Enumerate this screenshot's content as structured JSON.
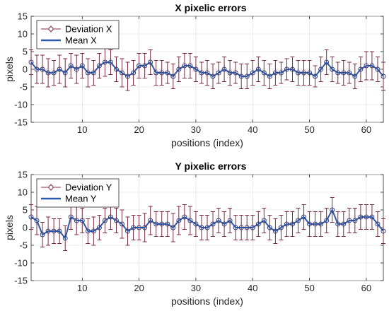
{
  "colors": {
    "errorbar": "#7a2b3f",
    "mean_line": "#2c5aa8",
    "marker_edge": "#3a3f7a",
    "grid": "#dcdcdc"
  },
  "chart_data": [
    {
      "type": "line",
      "title": "X pixelic errors",
      "xlabel": "positions (index)",
      "ylabel": "pixels",
      "xlim": [
        1,
        63
      ],
      "ylim": [
        -15,
        15
      ],
      "xticks": [
        10,
        20,
        30,
        40,
        50,
        60
      ],
      "yticks": [
        -15,
        -10,
        -5,
        0,
        5,
        10,
        15
      ],
      "grid": true,
      "legend": {
        "placement": "top-left",
        "entries": [
          "Deviation X",
          "Mean X"
        ]
      },
      "x": [
        1,
        2,
        3,
        4,
        5,
        6,
        7,
        8,
        9,
        10,
        11,
        12,
        13,
        14,
        15,
        16,
        17,
        18,
        19,
        20,
        21,
        22,
        23,
        24,
        25,
        26,
        27,
        28,
        29,
        30,
        31,
        32,
        33,
        34,
        35,
        36,
        37,
        38,
        39,
        40,
        41,
        42,
        43,
        44,
        45,
        46,
        47,
        48,
        49,
        50,
        51,
        52,
        53,
        54,
        55,
        56,
        57,
        58,
        59,
        60,
        61,
        62,
        63
      ],
      "series": [
        {
          "name": "Mean X",
          "y": [
            2,
            0,
            0,
            -1,
            -1,
            0,
            -1,
            1,
            0,
            1,
            -1,
            -1,
            1,
            2,
            2,
            0,
            -1,
            -2,
            -1,
            1,
            1,
            2,
            -1,
            -1,
            -1,
            -2,
            0,
            1,
            1,
            0,
            -1,
            -1,
            -2,
            -1,
            0,
            -1,
            -1,
            -2,
            -2,
            -1,
            0,
            -1,
            -2,
            -1,
            -1,
            0,
            0,
            -1,
            -1,
            -1,
            -2,
            0,
            2,
            0,
            -1,
            -1,
            -1,
            -2,
            0,
            1,
            1,
            0,
            -2
          ],
          "err": [
            3.5,
            4,
            4,
            4,
            3.5,
            4,
            4,
            3.5,
            4,
            3.5,
            4,
            3.5,
            3.5,
            4,
            3.5,
            3.5,
            4,
            4,
            3.5,
            3.5,
            3.5,
            3.5,
            3.5,
            3.5,
            3,
            3.5,
            3.5,
            3.5,
            3.5,
            3.5,
            3,
            3.5,
            3.5,
            3,
            3.5,
            3.5,
            3,
            3.5,
            3.5,
            3.5,
            3.5,
            3.5,
            3.5,
            3.5,
            3,
            3,
            3.5,
            3.5,
            3.5,
            3.5,
            3,
            3.5,
            3.5,
            3.5,
            3,
            3.5,
            3,
            3.5,
            3.5,
            4,
            4,
            3.5,
            4
          ]
        }
      ]
    },
    {
      "type": "line",
      "title": "Y pixelic errors",
      "xlabel": "positions (index)",
      "ylabel": "pixels",
      "xlim": [
        1,
        63
      ],
      "ylim": [
        -15,
        15
      ],
      "xticks": [
        10,
        20,
        30,
        40,
        50,
        60
      ],
      "yticks": [
        -15,
        -10,
        -5,
        0,
        5,
        10,
        15
      ],
      "grid": true,
      "legend": {
        "placement": "top-left",
        "entries": [
          "Deviation Y",
          "Mean Y"
        ]
      },
      "x": [
        1,
        2,
        3,
        4,
        5,
        6,
        7,
        8,
        9,
        10,
        11,
        12,
        13,
        14,
        15,
        16,
        17,
        18,
        19,
        20,
        21,
        22,
        23,
        24,
        25,
        26,
        27,
        28,
        29,
        30,
        31,
        32,
        33,
        34,
        35,
        36,
        37,
        38,
        39,
        40,
        41,
        42,
        43,
        44,
        45,
        46,
        47,
        48,
        49,
        50,
        51,
        52,
        53,
        54,
        55,
        56,
        57,
        58,
        59,
        60,
        61,
        62,
        63
      ],
      "series": [
        {
          "name": "Mean Y",
          "y": [
            3,
            2,
            -2,
            -1,
            -1,
            -1,
            -3,
            3,
            2,
            2,
            -1,
            -1,
            0,
            2,
            3,
            2,
            1,
            -1,
            0,
            0,
            0,
            2,
            1,
            1,
            1,
            0,
            2,
            3,
            2,
            1,
            0,
            0,
            1,
            2,
            1,
            2,
            0,
            0,
            0,
            0,
            1,
            2,
            0,
            -1,
            0,
            1,
            1,
            2,
            3,
            1,
            1,
            1,
            2,
            5,
            1,
            1,
            2,
            2,
            3,
            3,
            3,
            1,
            -1
          ],
          "err": [
            3.5,
            4,
            3.5,
            4,
            3.5,
            3.5,
            3.5,
            3.5,
            4,
            3.5,
            3.5,
            4,
            3.5,
            3.5,
            3.5,
            3.5,
            4,
            4,
            3.5,
            3.5,
            4,
            4,
            3.5,
            3.5,
            3.5,
            4,
            4,
            3.5,
            4,
            3.5,
            3.5,
            3.5,
            3.5,
            3.5,
            3.5,
            3.5,
            3.5,
            3.5,
            3.5,
            3.5,
            3.5,
            3.5,
            3.5,
            3.5,
            3.5,
            3.5,
            3.5,
            3.5,
            3.5,
            3.5,
            3.5,
            3.5,
            3.5,
            3.5,
            3.5,
            3.5,
            3.5,
            3.5,
            3.5,
            3.5,
            3.5,
            3.5,
            3.5
          ]
        }
      ]
    }
  ]
}
